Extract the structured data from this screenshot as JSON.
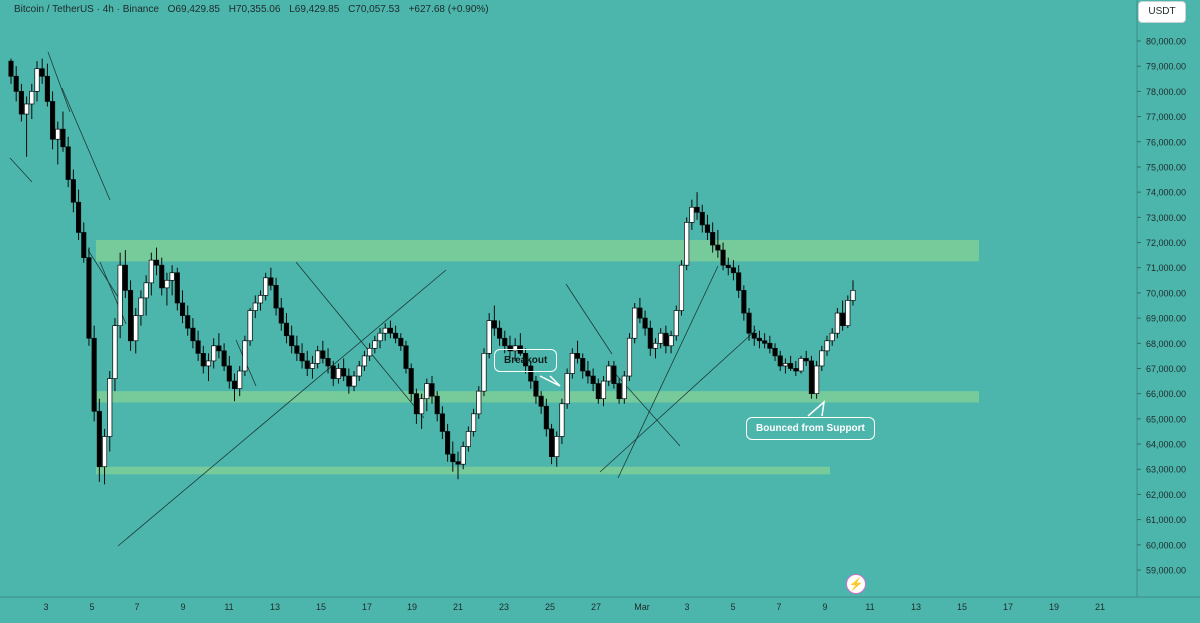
{
  "header": {
    "symbol": "Bitcoin / TetherUS · 4h · Binance",
    "open": "O69,429.85",
    "high": "H70,355.06",
    "low": "L69,429.85",
    "close": "C70,057.53",
    "change": "+627.68 (+0.90%)"
  },
  "currency_button": "USDT",
  "annotations": {
    "breakout": "Breakout",
    "bounce": "Bounced from Support"
  },
  "colors": {
    "background": "#4db6ac",
    "zone": "#7fcf98",
    "candle_up": "#ffffff",
    "candle_down": "#000000"
  },
  "icons": [
    "lightning-icon"
  ],
  "chart_data": {
    "type": "candlestick",
    "y_axis": {
      "min": 58000,
      "max": 81000,
      "ticks": [
        "80,000.00",
        "79,000.00",
        "78,000.00",
        "77,000.00",
        "76,000.00",
        "75,000.00",
        "74,000.00",
        "73,000.00",
        "72,000.00",
        "71,000.00",
        "70,000.00",
        "69,000.00",
        "68,000.00",
        "67,000.00",
        "66,000.00",
        "65,000.00",
        "64,000.00",
        "63,000.00",
        "62,000.00",
        "61,000.00",
        "60,000.00",
        "59,000.00"
      ]
    },
    "x_axis": {
      "ticks": [
        "3",
        "5",
        "7",
        "9",
        "11",
        "13",
        "15",
        "17",
        "19",
        "21",
        "23",
        "25",
        "27",
        "Mar",
        "3",
        "5",
        "7",
        "9",
        "11",
        "13",
        "15",
        "17",
        "19",
        "21"
      ]
    },
    "support_resistance_zones": [
      {
        "low": 71250,
        "high": 72100
      },
      {
        "low": 65650,
        "high": 66100
      },
      {
        "low": 62800,
        "high": 63100
      }
    ],
    "series": [
      {
        "values": [
          [
            79200,
            79300,
            78300,
            78600
          ],
          [
            78600,
            79000,
            77600,
            78000
          ],
          [
            78000,
            78300,
            76800,
            77100
          ],
          [
            77100,
            77800,
            75400,
            77500
          ],
          [
            77500,
            78300,
            76900,
            78000
          ],
          [
            78000,
            79200,
            77600,
            78900
          ],
          [
            78900,
            79300,
            78300,
            78600
          ],
          [
            78600,
            79100,
            77400,
            77600
          ],
          [
            77600,
            78000,
            75700,
            76100
          ],
          [
            76100,
            76800,
            75100,
            76500
          ],
          [
            76500,
            77200,
            75600,
            75800
          ],
          [
            75800,
            76200,
            74200,
            74500
          ],
          [
            74500,
            74900,
            73200,
            73600
          ],
          [
            73600,
            74100,
            72100,
            72400
          ],
          [
            72400,
            72800,
            71200,
            71400
          ],
          [
            71400,
            71800,
            67900,
            68200
          ],
          [
            68200,
            68700,
            64900,
            65300
          ],
          [
            65300,
            65800,
            62500,
            63100
          ],
          [
            63100,
            64600,
            62400,
            64300
          ],
          [
            64300,
            66900,
            63700,
            66600
          ],
          [
            66600,
            69000,
            66100,
            68700
          ],
          [
            68700,
            71600,
            68200,
            71100
          ],
          [
            71100,
            71700,
            69800,
            70100
          ],
          [
            70100,
            70500,
            67700,
            68100
          ],
          [
            68100,
            69400,
            67600,
            69100
          ],
          [
            69100,
            70100,
            68700,
            69800
          ],
          [
            69800,
            70700,
            69100,
            70400
          ],
          [
            70400,
            71600,
            69900,
            71300
          ],
          [
            71300,
            71800,
            70700,
            71100
          ],
          [
            71100,
            71400,
            69900,
            70200
          ],
          [
            70200,
            70800,
            69500,
            70500
          ],
          [
            70500,
            71100,
            69900,
            70800
          ],
          [
            70800,
            71000,
            69300,
            69600
          ],
          [
            69600,
            70100,
            68800,
            69100
          ],
          [
            69100,
            69500,
            68300,
            68600
          ],
          [
            68600,
            69000,
            67800,
            68100
          ],
          [
            68100,
            68500,
            67300,
            67600
          ],
          [
            67600,
            67900,
            66800,
            67100
          ],
          [
            67100,
            67600,
            66500,
            67300
          ],
          [
            67300,
            68200,
            67000,
            67900
          ],
          [
            67900,
            68400,
            67400,
            67700
          ],
          [
            67700,
            68000,
            66900,
            67100
          ],
          [
            67100,
            67500,
            66200,
            66500
          ],
          [
            66500,
            66800,
            65700,
            66200
          ],
          [
            66200,
            67100,
            65900,
            66900
          ],
          [
            66900,
            68300,
            66700,
            68100
          ],
          [
            68100,
            69400,
            67900,
            69300
          ],
          [
            69300,
            69900,
            69000,
            69600
          ],
          [
            69600,
            70100,
            69300,
            69900
          ],
          [
            69900,
            70800,
            69700,
            70600
          ],
          [
            70600,
            71000,
            70100,
            70300
          ],
          [
            70300,
            70600,
            69100,
            69400
          ],
          [
            69400,
            69800,
            68500,
            68800
          ],
          [
            68800,
            69200,
            68000,
            68300
          ],
          [
            68300,
            68700,
            67600,
            67900
          ],
          [
            67900,
            68300,
            67300,
            67600
          ],
          [
            67600,
            68000,
            67000,
            67300
          ],
          [
            67300,
            67700,
            66700,
            67000
          ],
          [
            67000,
            67500,
            66600,
            67200
          ],
          [
            67200,
            67900,
            67000,
            67700
          ],
          [
            67700,
            68100,
            67200,
            67400
          ],
          [
            67400,
            67800,
            66800,
            67100
          ],
          [
            67100,
            67300,
            66300,
            66600
          ],
          [
            66600,
            67200,
            66400,
            67000
          ],
          [
            67000,
            67400,
            66500,
            66700
          ],
          [
            66700,
            67000,
            66000,
            66300
          ],
          [
            66300,
            66900,
            66100,
            66700
          ],
          [
            66700,
            67300,
            66500,
            67100
          ],
          [
            67100,
            67700,
            66900,
            67500
          ],
          [
            67500,
            68000,
            67300,
            67800
          ],
          [
            67800,
            68300,
            67600,
            68100
          ],
          [
            68100,
            68600,
            67800,
            68400
          ],
          [
            68400,
            68800,
            68100,
            68600
          ],
          [
            68600,
            68900,
            68200,
            68400
          ],
          [
            68400,
            68700,
            68000,
            68200
          ],
          [
            68200,
            68400,
            67700,
            67900
          ],
          [
            67900,
            68100,
            66800,
            67000
          ],
          [
            67000,
            67200,
            65700,
            66000
          ],
          [
            66000,
            66200,
            64800,
            65200
          ],
          [
            65200,
            66000,
            64600,
            65800
          ],
          [
            65800,
            66600,
            65300,
            66400
          ],
          [
            66400,
            66700,
            65600,
            65900
          ],
          [
            65900,
            66100,
            64900,
            65200
          ],
          [
            65200,
            65500,
            64200,
            64500
          ],
          [
            64500,
            64800,
            63300,
            63600
          ],
          [
            63600,
            64100,
            62900,
            63300
          ],
          [
            63300,
            63700,
            62600,
            63200
          ],
          [
            63200,
            64100,
            63000,
            63900
          ],
          [
            63900,
            64700,
            63700,
            64500
          ],
          [
            64500,
            65400,
            64300,
            65200
          ],
          [
            65200,
            66300,
            65000,
            66100
          ],
          [
            66100,
            67800,
            65900,
            67600
          ],
          [
            67600,
            69200,
            67400,
            68900
          ],
          [
            68900,
            69500,
            68300,
            68600
          ],
          [
            68600,
            68900,
            67900,
            68200
          ],
          [
            68200,
            68500,
            67600,
            67900
          ],
          [
            67900,
            68300,
            67400,
            67700
          ],
          [
            67700,
            68200,
            67300,
            67900
          ],
          [
            67900,
            68400,
            67500,
            67600
          ],
          [
            67600,
            67800,
            66800,
            67100
          ],
          [
            67100,
            67300,
            66200,
            66500
          ],
          [
            66500,
            66700,
            65600,
            65900
          ],
          [
            65900,
            66100,
            65200,
            65500
          ],
          [
            65500,
            65800,
            64300,
            64600
          ],
          [
            64600,
            64800,
            63200,
            63500
          ],
          [
            63500,
            64500,
            63100,
            64300
          ],
          [
            64300,
            65800,
            64000,
            65600
          ],
          [
            65600,
            67000,
            65400,
            66800
          ],
          [
            66800,
            67800,
            66600,
            67600
          ],
          [
            67600,
            68100,
            67200,
            67400
          ],
          [
            67400,
            67600,
            66600,
            66900
          ],
          [
            66900,
            67300,
            66400,
            66700
          ],
          [
            66700,
            67000,
            66100,
            66400
          ],
          [
            66400,
            66600,
            65600,
            65800
          ],
          [
            65800,
            66700,
            65500,
            66500
          ],
          [
            66500,
            67300,
            66300,
            67100
          ],
          [
            67100,
            67300,
            66200,
            66400
          ],
          [
            66400,
            66600,
            65600,
            65800
          ],
          [
            65800,
            66900,
            65600,
            66700
          ],
          [
            66700,
            68400,
            66500,
            68200
          ],
          [
            68200,
            69600,
            68000,
            69400
          ],
          [
            69400,
            69800,
            68800,
            69000
          ],
          [
            69000,
            69300,
            68300,
            68600
          ],
          [
            68600,
            68900,
            67500,
            67800
          ],
          [
            67800,
            68200,
            67400,
            68000
          ],
          [
            68000,
            68600,
            67800,
            68400
          ],
          [
            68400,
            68700,
            67600,
            67900
          ],
          [
            67900,
            68500,
            67600,
            68300
          ],
          [
            68300,
            69500,
            68100,
            69300
          ],
          [
            69300,
            71300,
            69100,
            71100
          ],
          [
            71100,
            73000,
            70900,
            72800
          ],
          [
            72800,
            73700,
            72500,
            73400
          ],
          [
            73400,
            74000,
            72900,
            73200
          ],
          [
            73200,
            73500,
            72400,
            72700
          ],
          [
            72700,
            73100,
            72100,
            72400
          ],
          [
            72400,
            72800,
            71600,
            71900
          ],
          [
            71900,
            72500,
            71400,
            71700
          ],
          [
            71700,
            72000,
            70900,
            71100
          ],
          [
            71100,
            71400,
            70700,
            71000
          ],
          [
            71000,
            71300,
            70500,
            70800
          ],
          [
            70800,
            71100,
            69800,
            70100
          ],
          [
            70100,
            70300,
            68900,
            69200
          ],
          [
            69200,
            69400,
            68100,
            68400
          ],
          [
            68400,
            68700,
            67900,
            68200
          ],
          [
            68200,
            68500,
            67800,
            68100
          ],
          [
            68100,
            68400,
            67800,
            68000
          ],
          [
            68000,
            68300,
            67600,
            67800
          ],
          [
            67800,
            68000,
            67300,
            67500
          ],
          [
            67500,
            67700,
            66900,
            67100
          ],
          [
            67100,
            67400,
            66800,
            67200
          ],
          [
            67200,
            67500,
            66900,
            67000
          ],
          [
            67000,
            67300,
            66700,
            66900
          ],
          [
            66900,
            67500,
            66800,
            67400
          ],
          [
            67400,
            67700,
            67100,
            67300
          ],
          [
            67300,
            67500,
            65800,
            66000
          ],
          [
            66000,
            67300,
            65800,
            67100
          ],
          [
            67100,
            67900,
            66900,
            67700
          ],
          [
            67700,
            68300,
            67500,
            68100
          ],
          [
            68100,
            68600,
            67900,
            68400
          ],
          [
            68400,
            69400,
            68200,
            69200
          ],
          [
            69200,
            69700,
            68500,
            68700
          ],
          [
            68700,
            69900,
            68600,
            69700
          ],
          [
            69700,
            70500,
            69500,
            70100
          ]
        ]
      }
    ]
  }
}
